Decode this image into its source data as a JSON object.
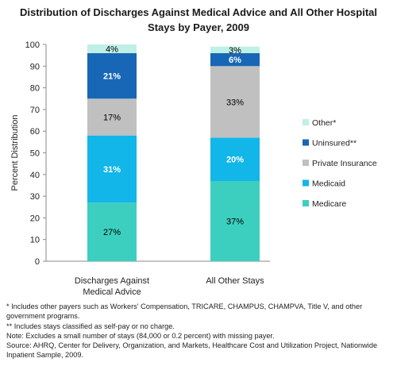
{
  "title_lines": [
    "Distribution of Discharges Against Medical Advice and All Other Hospital",
    "Stays by Payer, 2009"
  ],
  "footnotes": [
    "* Includes other payers such as Workers' Compensation, TRICARE, CHAMPUS, CHAMPVA, Title V, and other government programs.",
    "** Includes stays classified as self-pay or no charge.",
    "Note: Excludes a small number of stays (84,000 or 0.2 percent) with missing payer.",
    "Source: AHRQ, Center for Delivery, Organization, and Markets, Healthcare Cost and Utilization Project, Nationwide Inpatient Sample, 2009."
  ],
  "chart_data": {
    "type": "bar",
    "stacked": true,
    "title": "Distribution of Discharges Against Medical Advice and All Other Hospital Stays by Payer, 2009",
    "xlabel": "",
    "ylabel": "Percent Distribution",
    "ylim": [
      0,
      100
    ],
    "yticks": [
      0,
      10,
      20,
      30,
      40,
      50,
      60,
      70,
      80,
      90,
      100
    ],
    "grid": false,
    "legend_position": "right",
    "categories": [
      [
        "Discharges Against",
        "Medical Advice"
      ],
      [
        "All Other Stays"
      ]
    ],
    "series": [
      {
        "name": "Medicare",
        "color": "#3ccfbf",
        "label_color": "#000000",
        "label_bold": false,
        "values": [
          27,
          37
        ],
        "labels": [
          "27%",
          "37%"
        ]
      },
      {
        "name": "Medicaid",
        "color": "#12b6e8",
        "label_color": "#ffffff",
        "label_bold": true,
        "values": [
          31,
          20
        ],
        "labels": [
          "31%",
          "20%"
        ]
      },
      {
        "name": "Private Insurance",
        "color": "#c0c0c0",
        "label_color": "#000000",
        "label_bold": false,
        "values": [
          17,
          33
        ],
        "labels": [
          "17%",
          "33%"
        ]
      },
      {
        "name": "Uninsured**",
        "color": "#1767b6",
        "label_color": "#ffffff",
        "label_bold": true,
        "values": [
          21,
          6
        ],
        "labels": [
          "21%",
          "6%"
        ]
      },
      {
        "name": "Other*",
        "color": "#bff0e6",
        "label_color": "#000000",
        "label_bold": false,
        "values": [
          4,
          3
        ],
        "labels": [
          "4%",
          "3%"
        ]
      }
    ]
  }
}
